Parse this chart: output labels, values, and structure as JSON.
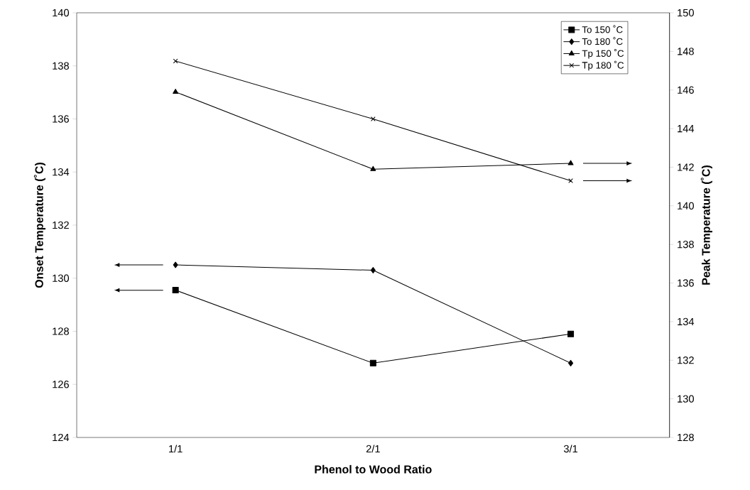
{
  "chart_data": {
    "type": "line",
    "xlabel": "Phenol to Wood Ratio",
    "ylabel": "Onset Temperature (˚C)",
    "y2label": "Peak Temperature (˚C)",
    "categories": [
      "1/1",
      "2/1",
      "3/1"
    ],
    "series": [
      {
        "name": "To 150 ˚C",
        "color": "#000000",
        "marker": "square",
        "values": [
          129.55,
          126.8,
          127.9
        ]
      },
      {
        "name": "To 180 ˚C",
        "color": "#000000",
        "marker": "diamond",
        "values": [
          130.5,
          130.3,
          126.8
        ]
      },
      {
        "name": "Tp 150 ˚C",
        "color": "#000000",
        "marker": "triangle",
        "axis": "y2",
        "values": [
          145.9,
          141.9,
          142.2
        ]
      },
      {
        "name": "Tp 180 ˚C",
        "color": "#000000",
        "marker": "cross",
        "axis": "y2",
        "values": [
          147.5,
          144.5,
          141.3
        ]
      }
    ],
    "ylim": [
      124,
      140
    ],
    "yticks": [
      124,
      126,
      128,
      130,
      132,
      134,
      136,
      138,
      140
    ],
    "y2lim": [
      128,
      150
    ],
    "y2ticks": [
      128,
      130,
      132,
      134,
      136,
      138,
      140,
      142,
      144,
      146,
      148,
      150
    ],
    "legend": "top right",
    "line_style": "solid"
  }
}
